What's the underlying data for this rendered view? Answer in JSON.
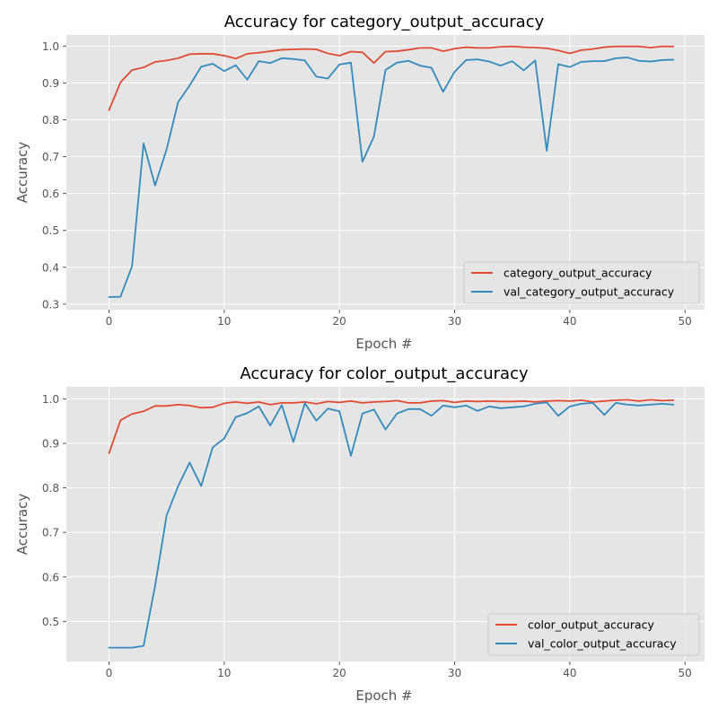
{
  "chart_data": [
    {
      "type": "line",
      "title": "Accuracy for category_output_accuracy",
      "xlabel": "Epoch #",
      "ylabel": "Accuracy",
      "xlim": [
        -3.7,
        51.7
      ],
      "ylim": [
        0.285,
        1.03
      ],
      "xticks": [
        0,
        10,
        20,
        30,
        40,
        50
      ],
      "yticks": [
        0.3,
        0.4,
        0.5,
        0.6,
        0.7,
        0.8,
        0.9,
        1.0
      ],
      "ytick_labels": [
        "0.3",
        "0.4",
        "0.5",
        "0.6",
        "0.7",
        "0.8",
        "0.9",
        "1.0"
      ],
      "grid": true,
      "legend": "lower-right",
      "series": [
        {
          "name": "category_output_accuracy",
          "color": "#E24A33",
          "values": [
            0.826,
            0.902,
            0.935,
            0.942,
            0.957,
            0.961,
            0.967,
            0.978,
            0.979,
            0.979,
            0.974,
            0.966,
            0.979,
            0.982,
            0.986,
            0.99,
            0.991,
            0.992,
            0.991,
            0.98,
            0.974,
            0.985,
            0.983,
            0.954,
            0.985,
            0.986,
            0.99,
            0.995,
            0.995,
            0.986,
            0.993,
            0.997,
            0.995,
            0.995,
            0.998,
            0.999,
            0.997,
            0.996,
            0.994,
            0.988,
            0.98,
            0.989,
            0.992,
            0.997,
            0.999,
            0.999,
            0.999,
            0.996,
            0.999,
            0.999
          ]
        },
        {
          "name": "val_category_output_accuracy",
          "color": "#348ABD",
          "values": [
            0.319,
            0.32,
            0.403,
            0.736,
            0.622,
            0.72,
            0.848,
            0.893,
            0.944,
            0.952,
            0.932,
            0.948,
            0.909,
            0.959,
            0.954,
            0.967,
            0.965,
            0.961,
            0.917,
            0.912,
            0.95,
            0.955,
            0.686,
            0.755,
            0.935,
            0.955,
            0.96,
            0.947,
            0.941,
            0.876,
            0.93,
            0.962,
            0.964,
            0.958,
            0.947,
            0.959,
            0.934,
            0.961,
            0.716,
            0.951,
            0.943,
            0.957,
            0.959,
            0.959,
            0.967,
            0.969,
            0.96,
            0.958,
            0.962,
            0.963
          ]
        }
      ]
    },
    {
      "type": "line",
      "title": "Accuracy for color_output_accuracy",
      "xlabel": "Epoch #",
      "ylabel": "Accuracy",
      "xlim": [
        -3.7,
        51.7
      ],
      "ylim": [
        0.41,
        1.027
      ],
      "xticks": [
        0,
        10,
        20,
        30,
        40,
        50
      ],
      "yticks": [
        0.5,
        0.6,
        0.7,
        0.8,
        0.9,
        1.0
      ],
      "ytick_labels": [
        "0.5",
        "0.6",
        "0.7",
        "0.8",
        "0.9",
        "1.0"
      ],
      "grid": true,
      "legend": "lower-right",
      "series": [
        {
          "name": "color_output_accuracy",
          "color": "#E24A33",
          "values": [
            0.878,
            0.952,
            0.966,
            0.972,
            0.984,
            0.984,
            0.987,
            0.985,
            0.98,
            0.981,
            0.99,
            0.993,
            0.99,
            0.993,
            0.987,
            0.991,
            0.991,
            0.993,
            0.989,
            0.994,
            0.992,
            0.995,
            0.991,
            0.993,
            0.994,
            0.996,
            0.991,
            0.991,
            0.995,
            0.996,
            0.992,
            0.995,
            0.994,
            0.995,
            0.994,
            0.994,
            0.995,
            0.993,
            0.995,
            0.996,
            0.995,
            0.997,
            0.993,
            0.995,
            0.997,
            0.998,
            0.995,
            0.998,
            0.996,
            0.997
          ]
        },
        {
          "name": "val_color_output_accuracy",
          "color": "#348ABD",
          "values": [
            0.441,
            0.441,
            0.441,
            0.445,
            0.58,
            0.738,
            0.804,
            0.857,
            0.804,
            0.891,
            0.911,
            0.959,
            0.968,
            0.983,
            0.94,
            0.986,
            0.903,
            0.99,
            0.951,
            0.978,
            0.972,
            0.872,
            0.967,
            0.976,
            0.931,
            0.967,
            0.977,
            0.977,
            0.962,
            0.985,
            0.981,
            0.985,
            0.973,
            0.983,
            0.979,
            0.981,
            0.983,
            0.989,
            0.992,
            0.962,
            0.983,
            0.989,
            0.991,
            0.964,
            0.991,
            0.987,
            0.985,
            0.987,
            0.989,
            0.987
          ]
        }
      ]
    }
  ]
}
